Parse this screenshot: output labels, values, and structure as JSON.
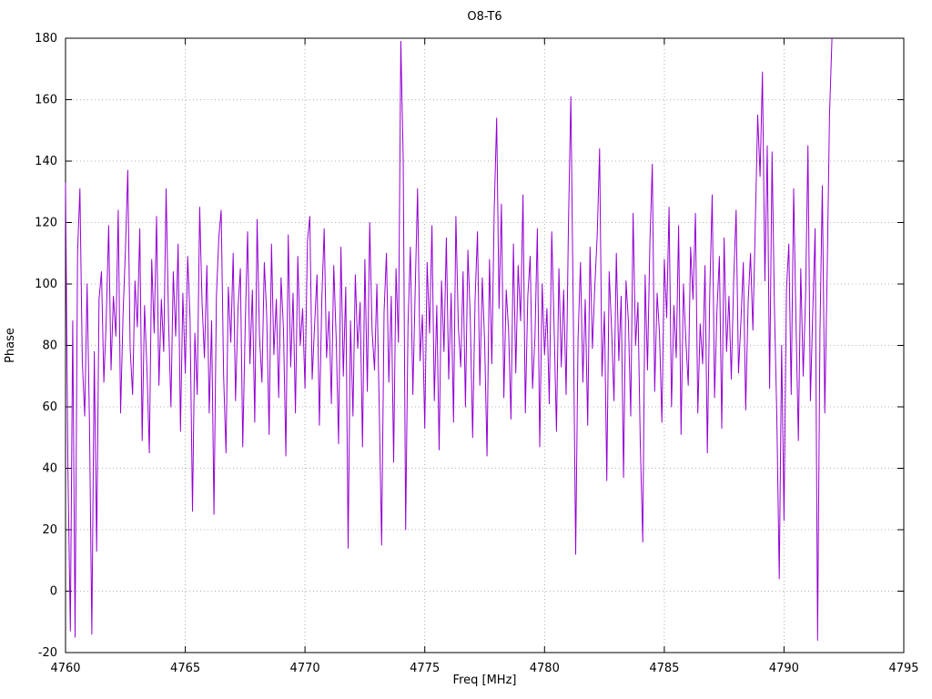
{
  "chart_data": {
    "type": "line",
    "title": "O8-T6",
    "xlabel": "Freq [MHz]",
    "ylabel": "Phase",
    "xlim": [
      4760,
      4795
    ],
    "ylim": [
      -20,
      180
    ],
    "xticks": [
      4760,
      4765,
      4770,
      4775,
      4780,
      4785,
      4790,
      4795
    ],
    "yticks": [
      -20,
      0,
      20,
      40,
      60,
      80,
      100,
      120,
      140,
      160,
      180
    ],
    "grid": true,
    "legend_position": "none",
    "line_color": "#9400d3",
    "background_color": "#ffffff",
    "x_start": 4760.0,
    "x_step": 0.1,
    "y": [
      133,
      40,
      -13,
      88,
      -15,
      110,
      131,
      75,
      57,
      100,
      55,
      -14,
      78,
      13,
      95,
      104,
      68,
      88,
      119,
      72,
      96,
      83,
      124,
      58,
      90,
      111,
      137,
      79,
      64,
      101,
      86,
      118,
      49,
      93,
      72,
      45,
      108,
      84,
      122,
      67,
      95,
      78,
      131,
      88,
      60,
      104,
      83,
      113,
      52,
      97,
      71,
      109,
      89,
      26,
      84,
      64,
      125,
      94,
      76,
      106,
      58,
      88,
      25,
      96,
      115,
      124,
      70,
      45,
      99,
      81,
      110,
      62,
      92,
      105,
      47,
      86,
      117,
      74,
      98,
      55,
      121,
      83,
      68,
      107,
      90,
      51,
      113,
      77,
      95,
      63,
      102,
      85,
      44,
      116,
      73,
      97,
      58,
      109,
      80,
      92,
      66,
      114,
      122,
      69,
      87,
      103,
      54,
      95,
      118,
      76,
      91,
      61,
      106,
      82,
      48,
      112,
      70,
      99,
      14,
      88,
      57,
      103,
      79,
      94,
      47,
      108,
      65,
      120,
      85,
      72,
      100,
      59,
      15,
      91,
      110,
      68,
      96,
      42,
      105,
      81,
      179,
      141,
      20,
      87,
      112,
      64,
      98,
      131,
      75,
      90,
      53,
      107,
      84,
      119,
      62,
      93,
      46,
      101,
      78,
      115,
      69,
      97,
      55,
      122,
      86,
      73,
      104,
      60,
      111,
      89,
      50,
      95,
      117,
      67,
      102,
      81,
      44,
      108,
      74,
      124,
      154,
      92,
      126,
      63,
      98,
      85,
      56,
      113,
      71,
      106,
      88,
      129,
      58,
      96,
      109,
      66,
      83,
      118,
      47,
      100,
      77,
      92,
      61,
      117,
      86,
      52,
      105,
      73,
      98,
      64,
      120,
      161,
      90,
      12,
      82,
      107,
      68,
      95,
      54,
      112,
      79,
      99,
      116,
      144,
      70,
      91,
      36,
      104,
      85,
      62,
      110,
      75,
      96,
      37,
      101,
      88,
      57,
      123,
      80,
      94,
      48,
      16,
      103,
      72,
      114,
      139,
      65,
      97,
      84,
      55,
      108,
      89,
      125,
      60,
      93,
      76,
      119,
      51,
      100,
      82,
      67,
      112,
      95,
      123,
      58,
      87,
      74,
      106,
      45,
      98,
      129,
      63,
      91,
      109,
      53,
      115,
      78,
      96,
      69,
      102,
      124,
      71,
      88,
      107,
      59,
      94,
      110,
      85,
      120,
      155,
      135,
      169,
      101,
      145,
      66,
      143,
      92,
      57,
      4,
      80,
      23,
      98,
      113,
      64,
      131,
      87,
      49,
      105,
      70,
      96,
      145,
      62,
      91,
      118,
      -16,
      84,
      132,
      58,
      103,
      155,
      180
    ]
  },
  "plot_geometry_note": "phase-vs-frequency noise trace"
}
